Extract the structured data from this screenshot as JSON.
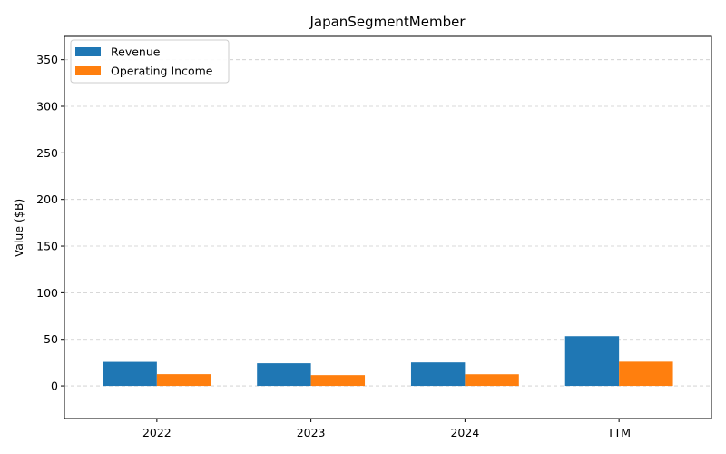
{
  "chart_data": {
    "type": "bar",
    "title": "JapanSegmentMember",
    "xlabel": "",
    "ylabel": "Value ($B)",
    "categories": [
      "2022",
      "2023",
      "2024",
      "TTM"
    ],
    "series": [
      {
        "name": "Revenue",
        "color": "#1f77b4",
        "values": [
          25.8,
          24.3,
          25.2,
          53.4
        ]
      },
      {
        "name": "Operating Income",
        "color": "#ff7f0e",
        "values": [
          12.6,
          11.6,
          12.5,
          26.0
        ]
      }
    ],
    "ylim": [
      -35,
      375
    ],
    "yticks": [
      0,
      50,
      100,
      150,
      200,
      250,
      300,
      350
    ],
    "grid": {
      "y": true,
      "x": false
    },
    "legend": "top-left"
  }
}
